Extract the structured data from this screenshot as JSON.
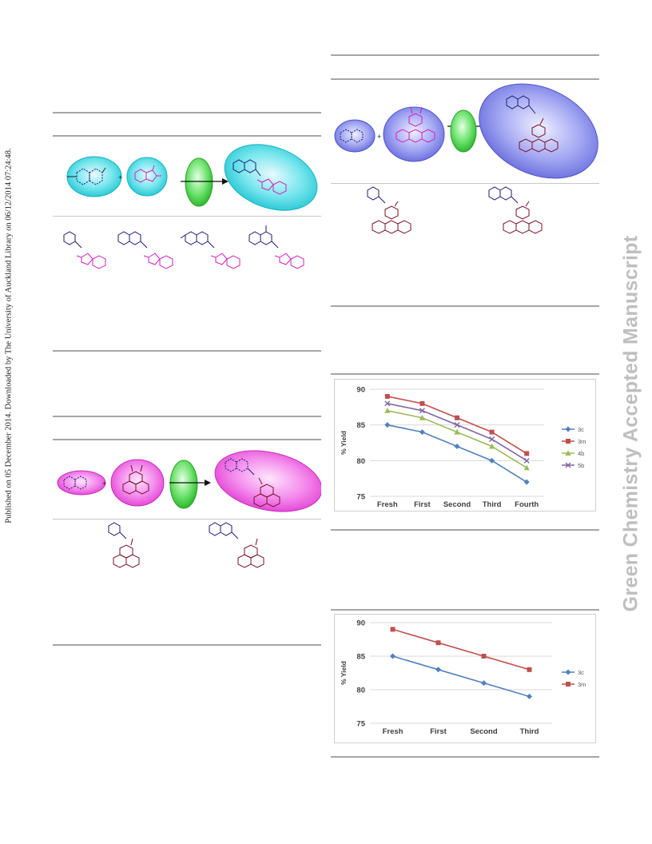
{
  "side_note": "Published on 05 December 2014. Downloaded by The University of Auckland Library on 06/12/2014 07:24:48.",
  "watermark": "Green Chemistry Accepted Manuscript",
  "colors": {
    "cyan": "#36d6e0",
    "magenta": "#f05ce6",
    "blue_purple": "#7f84ea",
    "green": "#3fd23f",
    "rule": "#a6a6a6"
  },
  "charts": {
    "chart1": {
      "chart_data": {
        "type": "line",
        "categories": [
          "Fresh",
          "First",
          "Second",
          "Third",
          "Fourth"
        ],
        "ylim": [
          75,
          90
        ],
        "yticks": [
          75,
          80,
          85,
          90
        ],
        "ylabel": "% Yield",
        "grid": true,
        "legend_position": "right",
        "series": [
          {
            "name": "3c",
            "color": "#4f81bd",
            "marker": "diamond",
            "values": [
              85,
              84,
              82,
              80,
              77
            ]
          },
          {
            "name": "3m",
            "color": "#c0504d",
            "marker": "square",
            "values": [
              89,
              88,
              86,
              84,
              81
            ]
          },
          {
            "name": "4b",
            "color": "#9bbb59",
            "marker": "triangle",
            "values": [
              87,
              86,
              84,
              82,
              79
            ]
          },
          {
            "name": "5b",
            "color": "#8064a2",
            "marker": "x",
            "values": [
              88,
              87,
              85,
              83,
              80
            ]
          }
        ]
      }
    },
    "chart2": {
      "chart_data": {
        "type": "line",
        "categories": [
          "Fresh",
          "First",
          "Second",
          "Third"
        ],
        "ylim": [
          75,
          90
        ],
        "yticks": [
          75,
          80,
          85,
          90
        ],
        "ylabel": "% Yield",
        "grid": true,
        "legend_position": "right",
        "series": [
          {
            "name": "3c",
            "color": "#4f81bd",
            "marker": "diamond",
            "values": [
              85,
              83,
              81,
              79
            ]
          },
          {
            "name": "3m",
            "color": "#c0504d",
            "marker": "square",
            "values": [
              89,
              87,
              85,
              83
            ]
          }
        ]
      }
    }
  }
}
